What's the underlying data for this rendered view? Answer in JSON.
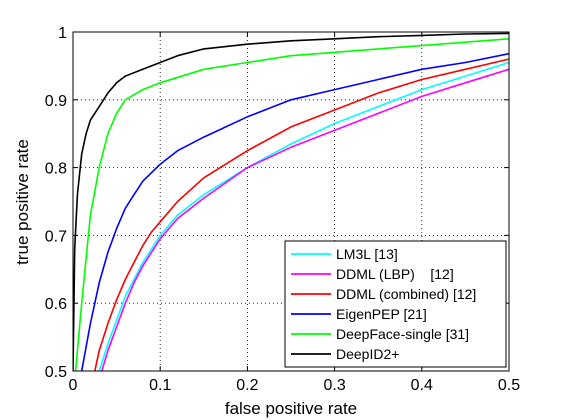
{
  "chart_data": {
    "type": "line",
    "xlabel": "false positive rate",
    "ylabel": "true positive rate",
    "xlim": [
      0,
      0.5
    ],
    "ylim": [
      0.5,
      1
    ],
    "xticks": [
      0,
      0.1,
      0.2,
      0.3,
      0.4,
      0.5
    ],
    "yticks": [
      0.5,
      0.6,
      0.7,
      0.8,
      0.9,
      1
    ],
    "xtick_labels": [
      "0",
      "0.1",
      "0.2",
      "0.3",
      "0.4",
      "0.5"
    ],
    "ytick_labels": [
      "0.5",
      "0.6",
      "0.7",
      "0.8",
      "0.9",
      "1"
    ],
    "grid": true,
    "legend_position": "bottom-right",
    "series": [
      {
        "name": "LM3L [13]",
        "color": "#00ffff",
        "x": [
          0.03,
          0.04,
          0.05,
          0.06,
          0.07,
          0.08,
          0.09,
          0.1,
          0.12,
          0.15,
          0.2,
          0.25,
          0.3,
          0.35,
          0.4,
          0.45,
          0.5
        ],
        "y": [
          0.5,
          0.54,
          0.575,
          0.61,
          0.635,
          0.66,
          0.68,
          0.7,
          0.73,
          0.76,
          0.8,
          0.835,
          0.865,
          0.89,
          0.915,
          0.935,
          0.955
        ]
      },
      {
        "name": "DDML (LBP)    [12]",
        "color": "#ff00ff",
        "x": [
          0.033,
          0.04,
          0.05,
          0.06,
          0.07,
          0.08,
          0.09,
          0.1,
          0.12,
          0.15,
          0.2,
          0.25,
          0.3,
          0.35,
          0.4,
          0.45,
          0.5
        ],
        "y": [
          0.5,
          0.53,
          0.565,
          0.6,
          0.63,
          0.655,
          0.675,
          0.695,
          0.725,
          0.755,
          0.8,
          0.83,
          0.855,
          0.88,
          0.905,
          0.925,
          0.945
        ]
      },
      {
        "name": "DDML (combined) [12]",
        "color": "#ff0000",
        "x": [
          0.025,
          0.03,
          0.04,
          0.05,
          0.06,
          0.07,
          0.08,
          0.09,
          0.1,
          0.12,
          0.15,
          0.2,
          0.25,
          0.3,
          0.35,
          0.4,
          0.45,
          0.5
        ],
        "y": [
          0.5,
          0.53,
          0.57,
          0.605,
          0.635,
          0.66,
          0.685,
          0.705,
          0.72,
          0.75,
          0.785,
          0.825,
          0.86,
          0.885,
          0.91,
          0.93,
          0.945,
          0.96
        ]
      },
      {
        "name": "EigenPEP [21]",
        "color": "#0000ff",
        "x": [
          0.01,
          0.02,
          0.03,
          0.04,
          0.05,
          0.06,
          0.07,
          0.08,
          0.1,
          0.12,
          0.15,
          0.2,
          0.25,
          0.3,
          0.35,
          0.4,
          0.45,
          0.5
        ],
        "y": [
          0.5,
          0.57,
          0.63,
          0.675,
          0.71,
          0.74,
          0.76,
          0.78,
          0.805,
          0.825,
          0.845,
          0.875,
          0.9,
          0.915,
          0.93,
          0.945,
          0.955,
          0.968
        ]
      },
      {
        "name": "DeepFace-single [31]",
        "color": "#00ff00",
        "x": [
          0.003,
          0.01,
          0.02,
          0.03,
          0.04,
          0.05,
          0.06,
          0.08,
          0.1,
          0.15,
          0.2,
          0.25,
          0.3,
          0.35,
          0.4,
          0.45,
          0.5
        ],
        "y": [
          0.5,
          0.6,
          0.73,
          0.8,
          0.85,
          0.88,
          0.9,
          0.915,
          0.925,
          0.945,
          0.955,
          0.965,
          0.97,
          0.975,
          0.98,
          0.985,
          0.99
        ]
      },
      {
        "name": "DeepID2+",
        "color": "#000000",
        "x": [
          0,
          0.002,
          0.005,
          0.01,
          0.015,
          0.02,
          0.03,
          0.04,
          0.05,
          0.06,
          0.08,
          0.1,
          0.12,
          0.15,
          0.2,
          0.25,
          0.3,
          0.35,
          0.4,
          0.45,
          0.5
        ],
        "y": [
          0.5,
          0.68,
          0.76,
          0.82,
          0.85,
          0.87,
          0.89,
          0.91,
          0.925,
          0.935,
          0.945,
          0.955,
          0.965,
          0.975,
          0.982,
          0.987,
          0.99,
          0.993,
          0.995,
          0.997,
          0.998
        ]
      }
    ]
  }
}
